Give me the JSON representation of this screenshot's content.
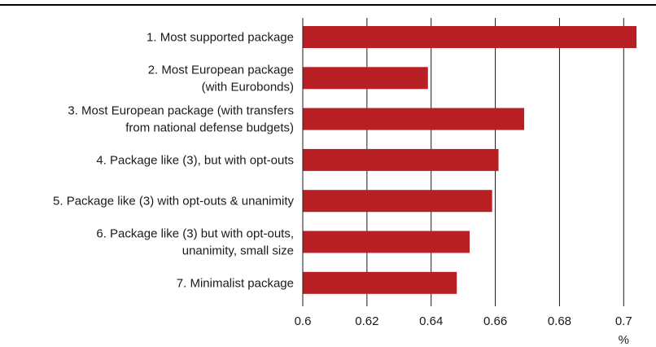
{
  "chart_data": {
    "type": "bar",
    "orientation": "horizontal",
    "title": "",
    "xlabel": "",
    "ylabel": "",
    "unit_label": "%",
    "xlim": [
      0.6,
      0.705
    ],
    "xticks": [
      0.6,
      0.62,
      0.64,
      0.66,
      0.68,
      0.7
    ],
    "xtick_labels": [
      "0.6",
      "0.62",
      "0.64",
      "0.66",
      "0.68",
      "0.7"
    ],
    "grid": "vertical",
    "categories": [
      [
        "1. Most supported package"
      ],
      [
        "2. Most European package",
        "(with Eurobonds)"
      ],
      [
        "3. Most European package (with transfers",
        "from national defense budgets)"
      ],
      [
        "4. Package like (3), but with opt-outs"
      ],
      [
        "5. Package like (3) with opt-outs & unanimity"
      ],
      [
        "6. Package like (3) but with opt-outs,",
        "unanimity, small size"
      ],
      [
        "7. Minimalist package"
      ]
    ],
    "values": [
      0.704,
      0.639,
      0.669,
      0.661,
      0.659,
      0.652,
      0.648
    ],
    "colors": {
      "bar": "#b92025",
      "grid": "#1a1a1a",
      "axis": "#1a1a1a",
      "top_rule": "#000000"
    }
  }
}
